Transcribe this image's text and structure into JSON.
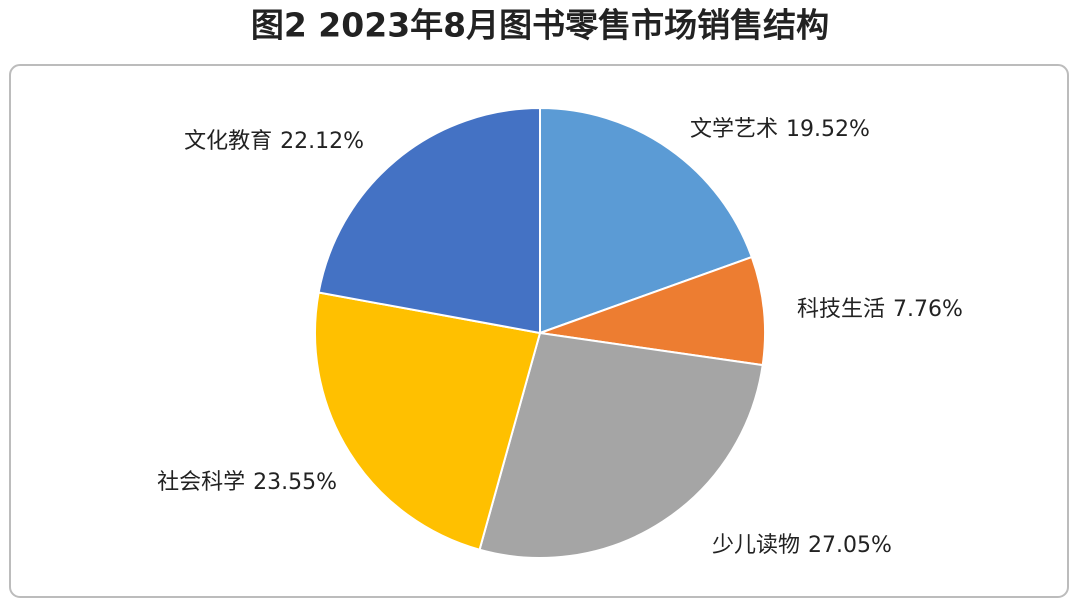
{
  "chart_data": {
    "type": "pie",
    "title": "图2  2023年8月图书零售市场销售结构",
    "categories": [
      "文学艺术",
      "科技生活",
      "少儿读物",
      "社会科学",
      "文化教育"
    ],
    "values": [
      19.52,
      7.76,
      27.05,
      23.55,
      22.12
    ],
    "value_labels": [
      "19.52%",
      "7.76%",
      "27.05%",
      "23.55%",
      "22.12%"
    ],
    "colors": [
      "#5b9bd5",
      "#ed7d31",
      "#a5a5a5",
      "#ffc000",
      "#4472c4"
    ]
  }
}
